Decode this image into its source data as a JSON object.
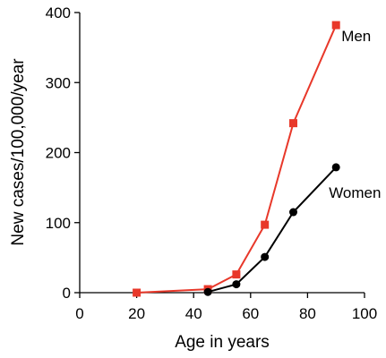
{
  "chart_data": {
    "type": "line",
    "title": "",
    "xlabel": "Age in years",
    "ylabel": "New cases/100,000/year",
    "xlim": [
      0,
      100
    ],
    "ylim": [
      0,
      400
    ],
    "xticks": [
      0,
      20,
      40,
      60,
      80,
      100
    ],
    "yticks": [
      0,
      100,
      200,
      300,
      400
    ],
    "grid": false,
    "legend": "direct labels at end of lines",
    "series": [
      {
        "name": "Men",
        "color": "#e8382a",
        "marker": "square",
        "points": [
          [
            20,
            0
          ],
          [
            45,
            5
          ],
          [
            55,
            26
          ],
          [
            65,
            97
          ],
          [
            75,
            242
          ],
          [
            90,
            382
          ]
        ]
      },
      {
        "name": "Women",
        "color": "#000000",
        "marker": "circle",
        "points": [
          [
            45,
            1
          ],
          [
            55,
            12
          ],
          [
            65,
            51
          ],
          [
            75,
            115
          ],
          [
            90,
            179
          ]
        ]
      }
    ]
  }
}
